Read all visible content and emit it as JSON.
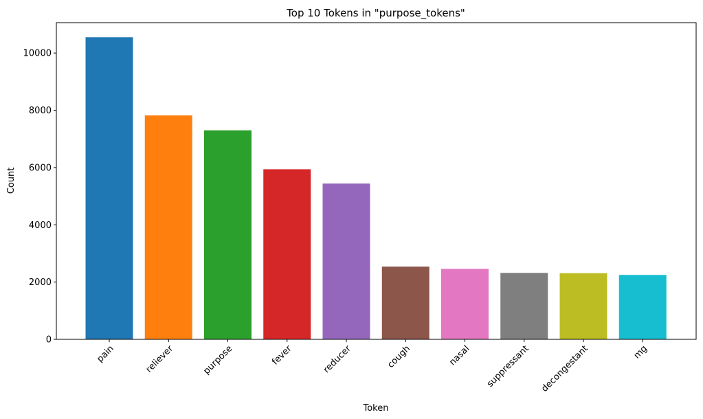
{
  "chart_data": {
    "type": "bar",
    "title": "Top 10 Tokens in \"purpose_tokens\"",
    "xlabel": "Token",
    "ylabel": "Count",
    "categories": [
      "pain",
      "reliever",
      "purpose",
      "fever",
      "reducer",
      "cough",
      "nasal",
      "suppressant",
      "decongestant",
      "mg"
    ],
    "values": [
      10550,
      7820,
      7300,
      5940,
      5440,
      2540,
      2460,
      2320,
      2310,
      2250
    ],
    "colors": [
      "#1f77b4",
      "#ff7f0e",
      "#2ca02c",
      "#d62728",
      "#9467bd",
      "#8c564b",
      "#e377c2",
      "#7f7f7f",
      "#bcbd22",
      "#17becf"
    ],
    "ylim": [
      0,
      11060
    ],
    "yticks": [
      0,
      2000,
      4000,
      6000,
      8000,
      10000
    ],
    "ytick_labels": [
      "0",
      "2000",
      "4000",
      "6000",
      "8000",
      "10000"
    ],
    "grid": false,
    "legend": "none"
  }
}
